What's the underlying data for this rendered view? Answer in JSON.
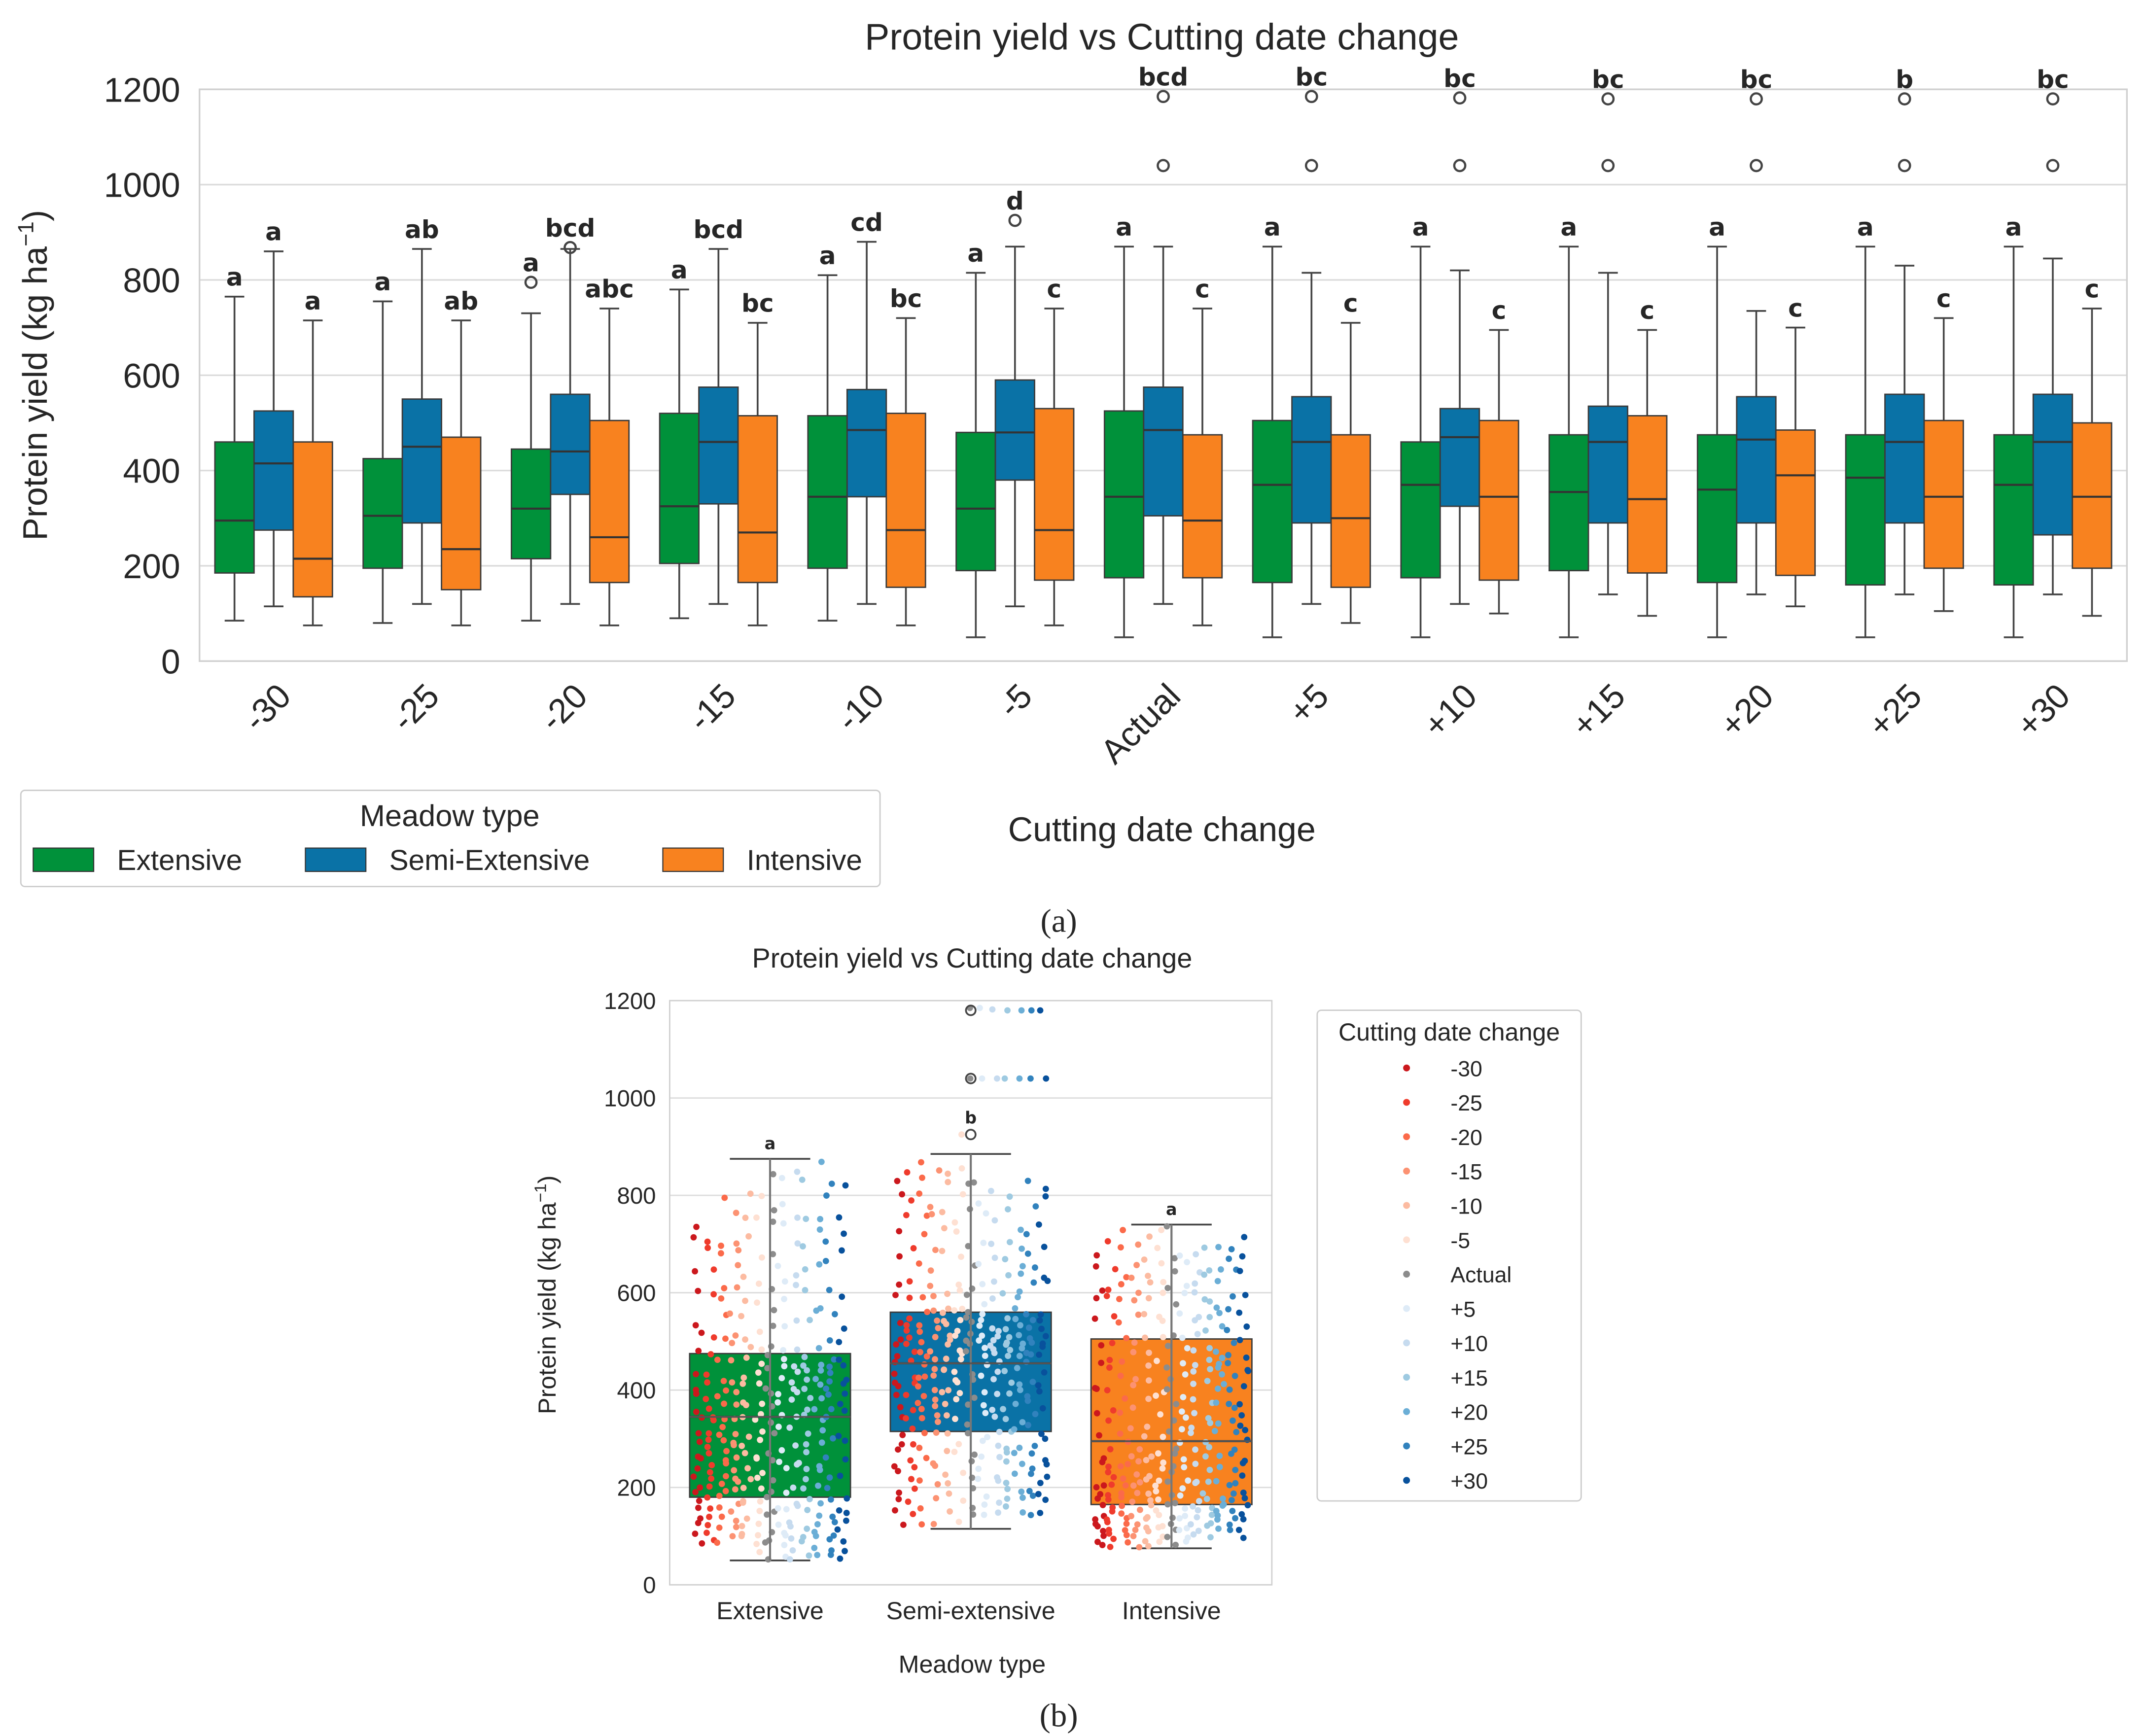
{
  "chart_data": [
    {
      "type": "box",
      "panel_caption": "(a)",
      "title": "Protein yield vs Cutting date change",
      "xlabel": "Cutting date change",
      "ylabel": "Protein yield (kg ha",
      "ylabel_sup": "−1",
      "ylabel_close": ")",
      "ylim": [
        0,
        1200
      ],
      "yticks": [
        "0",
        "200",
        "400",
        "600",
        "800",
        "1000",
        "1200"
      ],
      "grid": true,
      "legend": {
        "title": "Meadow type",
        "placement": "bottom-left outside",
        "entries": [
          "Extensive",
          "Semi-Extensive",
          "Intensive"
        ]
      },
      "colors": [
        "#00913a",
        "#0a72a6",
        "#f8821f"
      ],
      "categories": [
        "-30",
        "-25",
        "-20",
        "-15",
        "-10",
        "-5",
        "Actual",
        "+5",
        "+10",
        "+15",
        "+20",
        "+25",
        "+30"
      ],
      "stats_order": [
        "whisker_low",
        "q1",
        "median",
        "q3",
        "whisker_high"
      ],
      "series": [
        {
          "name": "Extensive",
          "boxes": [
            [
              85,
              185,
              295,
              460,
              765
            ],
            [
              80,
              195,
              305,
              425,
              755
            ],
            [
              85,
              215,
              320,
              445,
              730
            ],
            [
              90,
              205,
              325,
              520,
              780
            ],
            [
              85,
              195,
              345,
              515,
              810
            ],
            [
              50,
              190,
              320,
              480,
              815
            ],
            [
              50,
              175,
              345,
              525,
              870
            ],
            [
              50,
              165,
              370,
              505,
              870
            ],
            [
              50,
              175,
              370,
              460,
              870
            ],
            [
              50,
              190,
              355,
              475,
              870
            ],
            [
              50,
              165,
              360,
              475,
              870
            ],
            [
              50,
              160,
              385,
              475,
              870
            ],
            [
              50,
              160,
              370,
              475,
              870
            ]
          ],
          "outliers": [
            [],
            [],
            [
              795
            ],
            [],
            [],
            [],
            [],
            [],
            [],
            [],
            [],
            [],
            []
          ],
          "letters": [
            "a",
            "a",
            "a",
            "a",
            "a",
            "a",
            "a",
            "a",
            "a",
            "a",
            "a",
            "a",
            "a"
          ]
        },
        {
          "name": "Semi-Extensive",
          "boxes": [
            [
              115,
              275,
              415,
              525,
              860
            ],
            [
              120,
              290,
              450,
              550,
              865
            ],
            [
              120,
              350,
              440,
              560,
              865
            ],
            [
              120,
              330,
              460,
              575,
              865
            ],
            [
              120,
              345,
              485,
              570,
              880
            ],
            [
              115,
              380,
              480,
              590,
              870
            ],
            [
              120,
              305,
              485,
              575,
              870
            ],
            [
              120,
              290,
              460,
              555,
              815
            ],
            [
              120,
              325,
              470,
              530,
              820
            ],
            [
              140,
              290,
              460,
              535,
              815
            ],
            [
              140,
              290,
              465,
              555,
              735
            ],
            [
              140,
              290,
              460,
              560,
              830
            ],
            [
              140,
              265,
              460,
              560,
              845
            ]
          ],
          "outliers": [
            [],
            [],
            [
              868
            ],
            [],
            [],
            [
              925
            ],
            [
              1040,
              1185
            ],
            [
              1040,
              1185
            ],
            [
              1040,
              1182
            ],
            [
              1040,
              1180
            ],
            [
              1040,
              1180
            ],
            [
              1040,
              1180
            ],
            [
              1040,
              1180
            ]
          ],
          "letters": [
            "a",
            "ab",
            "bcd",
            "bcd",
            "cd",
            "d",
            "bcd",
            "bc",
            "bc",
            "bc",
            "bc",
            "b",
            "bc"
          ]
        },
        {
          "name": "Intensive",
          "boxes": [
            [
              75,
              135,
              215,
              460,
              715
            ],
            [
              75,
              150,
              235,
              470,
              715
            ],
            [
              75,
              165,
              260,
              505,
              740
            ],
            [
              75,
              165,
              270,
              515,
              710
            ],
            [
              75,
              155,
              275,
              520,
              720
            ],
            [
              75,
              170,
              275,
              530,
              740
            ],
            [
              75,
              175,
              295,
              475,
              740
            ],
            [
              80,
              155,
              300,
              475,
              710
            ],
            [
              100,
              170,
              345,
              505,
              695
            ],
            [
              95,
              185,
              340,
              515,
              695
            ],
            [
              115,
              180,
              390,
              485,
              700
            ],
            [
              105,
              195,
              345,
              505,
              720
            ],
            [
              95,
              195,
              345,
              500,
              740
            ]
          ],
          "outliers": [
            [],
            [],
            [],
            [],
            [],
            [],
            [],
            [],
            [],
            [],
            [],
            [],
            []
          ],
          "letters": [
            "a",
            "ab",
            "abc",
            "bc",
            "bc",
            "c",
            "c",
            "c",
            "c",
            "c",
            "c",
            "c",
            "c"
          ]
        }
      ]
    },
    {
      "type": "box+strip",
      "panel_caption": "(b)",
      "title": "Protein yield vs Cutting date change",
      "xlabel": "Meadow type",
      "ylabel": "Protein yield (kg ha",
      "ylabel_sup": "−1",
      "ylabel_close": ")",
      "ylim": [
        0,
        1200
      ],
      "yticks": [
        "0",
        "200",
        "400",
        "600",
        "800",
        "1000",
        "1200"
      ],
      "grid": true,
      "categories": [
        "Extensive",
        "Semi-extensive",
        "Intensive"
      ],
      "box_colors": [
        "#00913a",
        "#0a72a6",
        "#f8821f"
      ],
      "boxes": [
        [
          50,
          180,
          345,
          475,
          875
        ],
        [
          115,
          315,
          455,
          560,
          885
        ],
        [
          75,
          165,
          295,
          505,
          740
        ]
      ],
      "outliers": [
        [],
        [
          925,
          1040,
          1180
        ],
        []
      ],
      "letters": [
        "a",
        "b",
        "a"
      ],
      "legend": {
        "title": "Cutting date change",
        "placement": "right outside",
        "entries": [
          "-30",
          "-25",
          "-20",
          "-15",
          "-10",
          "-5",
          "Actual",
          "+5",
          "+10",
          "+15",
          "+20",
          "+25",
          "+30"
        ],
        "colors": [
          "#cb181d",
          "#ef3b2c",
          "#fb6a4a",
          "#fc9272",
          "#fcbba1",
          "#fee0d2",
          "#8c8c8c",
          "#deebf7",
          "#c6dbef",
          "#9ecae1",
          "#6baed6",
          "#3182bd",
          "#08519c"
        ]
      }
    }
  ]
}
